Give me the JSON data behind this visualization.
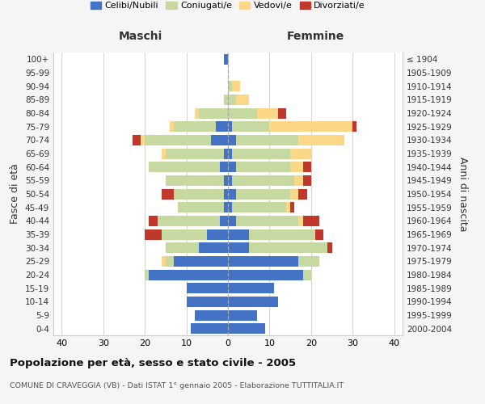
{
  "age_groups": [
    "0-4",
    "5-9",
    "10-14",
    "15-19",
    "20-24",
    "25-29",
    "30-34",
    "35-39",
    "40-44",
    "45-49",
    "50-54",
    "55-59",
    "60-64",
    "65-69",
    "70-74",
    "75-79",
    "80-84",
    "85-89",
    "90-94",
    "95-99",
    "100+"
  ],
  "birth_years": [
    "2000-2004",
    "1995-1999",
    "1990-1994",
    "1985-1989",
    "1980-1984",
    "1975-1979",
    "1970-1974",
    "1965-1969",
    "1960-1964",
    "1955-1959",
    "1950-1954",
    "1945-1949",
    "1940-1944",
    "1935-1939",
    "1930-1934",
    "1925-1929",
    "1920-1924",
    "1915-1919",
    "1910-1914",
    "1905-1909",
    "≤ 1904"
  ],
  "male": {
    "celibi": [
      9,
      8,
      10,
      10,
      19,
      13,
      7,
      5,
      2,
      1,
      1,
      1,
      2,
      1,
      4,
      3,
      0,
      0,
      0,
      0,
      1
    ],
    "coniugati": [
      0,
      0,
      0,
      0,
      1,
      2,
      8,
      11,
      15,
      11,
      12,
      14,
      17,
      14,
      16,
      10,
      7,
      1,
      0,
      0,
      0
    ],
    "vedovi": [
      0,
      0,
      0,
      0,
      0,
      1,
      0,
      0,
      0,
      0,
      0,
      0,
      0,
      1,
      1,
      1,
      1,
      0,
      0,
      0,
      0
    ],
    "divorziati": [
      0,
      0,
      0,
      0,
      0,
      0,
      0,
      4,
      2,
      0,
      3,
      0,
      0,
      0,
      2,
      0,
      0,
      0,
      0,
      0,
      0
    ]
  },
  "female": {
    "nubili": [
      9,
      7,
      12,
      11,
      18,
      17,
      5,
      5,
      2,
      1,
      2,
      1,
      2,
      1,
      2,
      1,
      0,
      0,
      0,
      0,
      0
    ],
    "coniugate": [
      0,
      0,
      0,
      0,
      2,
      5,
      19,
      16,
      15,
      13,
      13,
      15,
      13,
      14,
      15,
      9,
      7,
      2,
      1,
      0,
      0
    ],
    "vedove": [
      0,
      0,
      0,
      0,
      0,
      0,
      0,
      0,
      1,
      1,
      2,
      2,
      3,
      5,
      11,
      20,
      5,
      3,
      2,
      0,
      0
    ],
    "divorziate": [
      0,
      0,
      0,
      0,
      0,
      0,
      1,
      2,
      4,
      1,
      2,
      2,
      2,
      0,
      0,
      1,
      2,
      0,
      0,
      0,
      0
    ]
  },
  "colors": {
    "celibi_nubili": "#4472c4",
    "coniugati": "#c5d9a0",
    "vedovi": "#fcd787",
    "divorziati": "#c0382b"
  },
  "xlim": 42,
  "title": "Popolazione per età, sesso e stato civile - 2005",
  "subtitle": "COMUNE DI CRAVEGGIA (VB) - Dati ISTAT 1° gennaio 2005 - Elaborazione TUTTITALIA.IT",
  "ylabel_left": "Fasce di età",
  "ylabel_right": "Anni di nascita",
  "xlabel_left": "Maschi",
  "xlabel_right": "Femmine",
  "bg_color": "#f5f5f5",
  "plot_bg": "#ffffff"
}
